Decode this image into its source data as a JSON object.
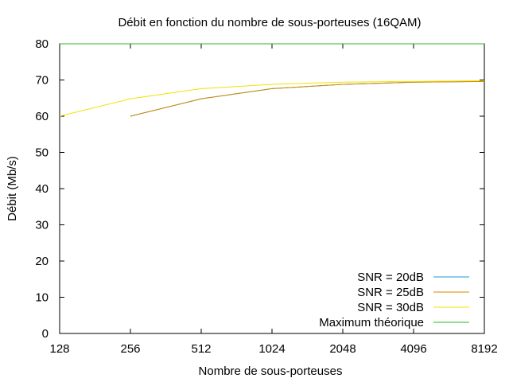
{
  "chart_data": {
    "type": "line",
    "title": "Débit en fonction du nombre de sous-porteuses (16QAM)",
    "xlabel": "Nombre de sous-porteuses",
    "ylabel": "Débit (Mb/s)",
    "x_scale": "log2",
    "xlim": [
      128,
      8192
    ],
    "ylim": [
      0,
      80
    ],
    "x_ticks": [
      128,
      256,
      512,
      1024,
      2048,
      4096,
      8192
    ],
    "y_ticks": [
      0,
      10,
      20,
      30,
      40,
      50,
      60,
      70,
      80
    ],
    "grid": false,
    "legend_position": "bottom-right",
    "series": [
      {
        "name": "SNR = 20dB",
        "color": "#1f9bd7",
        "x": [
          256,
          512,
          1024,
          2048,
          4096,
          8192
        ],
        "y": [
          60,
          64.8,
          67.6,
          68.8,
          69.4,
          69.6
        ]
      },
      {
        "name": "SNR = 25dB",
        "color": "#d98a00",
        "x": [
          256,
          512,
          1024,
          2048,
          4096,
          8192
        ],
        "y": [
          60,
          64.8,
          67.6,
          68.8,
          69.4,
          69.6
        ]
      },
      {
        "name": "SNR = 30dB",
        "color": "#f2e200",
        "x": [
          128,
          256,
          512,
          1024,
          2048,
          4096,
          8192
        ],
        "y": [
          60,
          64.8,
          67.6,
          68.8,
          69.4,
          69.6,
          69.8
        ]
      },
      {
        "name": "Maximum théorique",
        "color": "#22bb22",
        "x": [
          128,
          8192
        ],
        "y": [
          80,
          80
        ]
      }
    ]
  }
}
